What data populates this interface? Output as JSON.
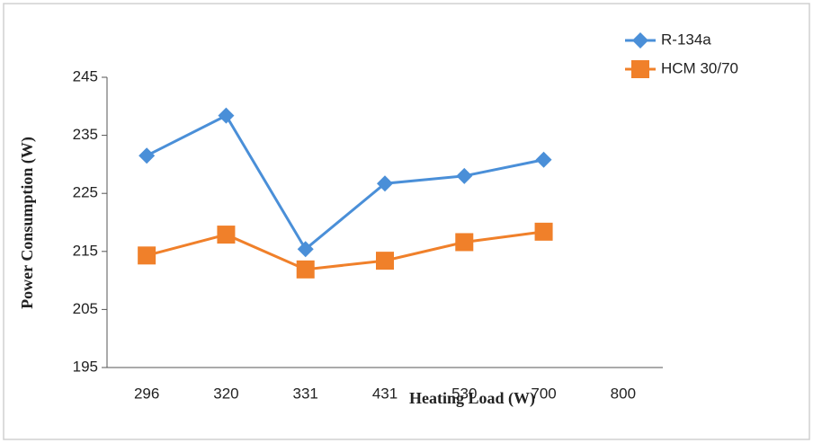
{
  "chart_data": {
    "type": "line",
    "x_label": "Heating Load (W)",
    "y_label": "Power Consumption (W)",
    "categories": [
      "296",
      "320",
      "331",
      "431",
      "530",
      "700",
      "800"
    ],
    "series": [
      {
        "name": "R-134a",
        "color": "#4a8fd8",
        "marker": "diamond",
        "values": [
          231.5,
          238.4,
          215.4,
          226.7,
          228,
          230.8,
          null
        ]
      },
      {
        "name": "HCM 30/70",
        "color": "#f0802a",
        "marker": "square",
        "values": [
          214.3,
          217.9,
          211.9,
          213.4,
          216.6,
          218.4,
          null
        ]
      }
    ],
    "ylim": [
      195,
      245
    ],
    "yticks": [
      195,
      205,
      215,
      225,
      235,
      245
    ],
    "grid": false,
    "legend": "top-right"
  }
}
